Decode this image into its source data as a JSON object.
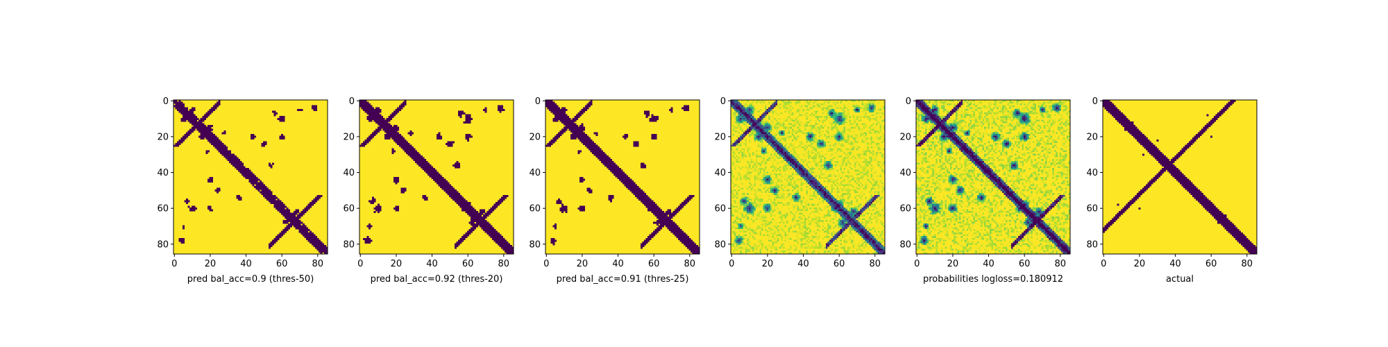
{
  "chart_data": [
    {
      "type": "heatmap",
      "label": "pred bal_acc=0.9 (thres-50)",
      "xlim": [
        0,
        85
      ],
      "ylim": [
        85,
        0
      ],
      "xticks": [
        "0",
        "20",
        "40",
        "60",
        "80"
      ],
      "yticks": [
        "0",
        "20",
        "40",
        "60",
        "80"
      ],
      "colormap": "viridis",
      "values": "binary",
      "colors": {
        "low": "#440154",
        "high": "#fde725"
      }
    },
    {
      "type": "heatmap",
      "label": "pred bal_acc=0.92 (thres-20)",
      "xlim": [
        0,
        85
      ],
      "ylim": [
        85,
        0
      ],
      "xticks": [
        "0",
        "20",
        "40",
        "60",
        "80"
      ],
      "yticks": [
        "0",
        "20",
        "40",
        "60",
        "80"
      ],
      "colormap": "viridis",
      "values": "binary",
      "colors": {
        "low": "#440154",
        "high": "#fde725"
      }
    },
    {
      "type": "heatmap",
      "label": "pred bal_acc=0.91 (thres-25)",
      "xlim": [
        0,
        85
      ],
      "ylim": [
        85,
        0
      ],
      "xticks": [
        "0",
        "20",
        "40",
        "60",
        "80"
      ],
      "yticks": [
        "0",
        "20",
        "40",
        "60",
        "80"
      ],
      "colormap": "viridis",
      "values": "binary",
      "colors": {
        "low": "#440154",
        "high": "#fde725"
      }
    },
    {
      "type": "heatmap",
      "label": "",
      "xlim": [
        0,
        85
      ],
      "ylim": [
        85,
        0
      ],
      "xticks": [
        "0",
        "20",
        "40",
        "60",
        "80"
      ],
      "yticks": [
        "0",
        "20",
        "40",
        "60",
        "80"
      ],
      "colormap": "viridis",
      "values": "continuous",
      "colors": {
        "low": "#440154",
        "high": "#fde725"
      }
    },
    {
      "type": "heatmap",
      "label": "probabilities logloss=0.180912",
      "xlim": [
        0,
        85
      ],
      "ylim": [
        85,
        0
      ],
      "xticks": [
        "0",
        "20",
        "40",
        "60",
        "80"
      ],
      "yticks": [
        "0",
        "20",
        "40",
        "60",
        "80"
      ],
      "colormap": "viridis",
      "values": "continuous",
      "colors": {
        "low": "#440154",
        "high": "#fde725"
      }
    },
    {
      "type": "heatmap",
      "label": "actual",
      "xlim": [
        0,
        85
      ],
      "ylim": [
        85,
        0
      ],
      "xticks": [
        "0",
        "20",
        "40",
        "60",
        "80"
      ],
      "yticks": [
        "0",
        "20",
        "40",
        "60",
        "80"
      ],
      "colormap": "viridis",
      "values": "binary",
      "colors": {
        "low": "#440154",
        "high": "#fde725"
      }
    }
  ]
}
